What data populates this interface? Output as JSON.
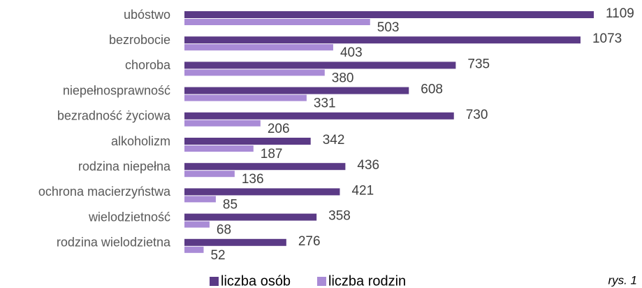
{
  "chart_data": {
    "type": "bar",
    "orientation": "horizontal",
    "categories": [
      "ubóstwo",
      "bezrobocie",
      "choroba",
      "niepełnosprawność",
      "bezradność życiowa",
      "alkoholizm",
      "rodzina niepełna",
      "ochrona macierzyństwa",
      "wielodzietność",
      "rodzina wielodzietna"
    ],
    "series": [
      {
        "name": "liczba osób",
        "color": "#5b3a86",
        "values": [
          1109,
          1073,
          735,
          608,
          730,
          342,
          436,
          421,
          358,
          276
        ]
      },
      {
        "name": "liczba rodzin",
        "color": "#a98bd6",
        "values": [
          503,
          403,
          380,
          331,
          206,
          187,
          136,
          85,
          68,
          52
        ]
      }
    ],
    "legend": "bottom",
    "annotation": "rys. 1"
  }
}
